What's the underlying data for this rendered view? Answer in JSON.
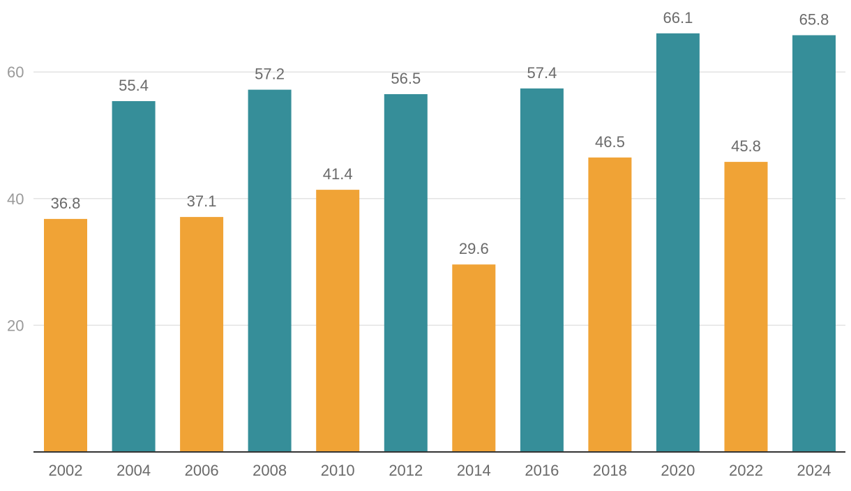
{
  "chart_data": {
    "type": "bar",
    "categories": [
      "2002",
      "2004",
      "2006",
      "2008",
      "2010",
      "2012",
      "2014",
      "2016",
      "2018",
      "2020",
      "2022",
      "2024"
    ],
    "values": [
      36.8,
      55.4,
      37.1,
      57.2,
      41.4,
      56.5,
      29.6,
      57.4,
      46.5,
      66.1,
      45.8,
      65.8
    ],
    "data_labels": [
      "36.8",
      "55.4",
      "37.1",
      "57.2",
      "41.4",
      "56.5",
      "29.6",
      "57.4",
      "46.5",
      "66.1",
      "45.8",
      "65.8"
    ],
    "bar_colors": [
      "#f0a336",
      "#368e99",
      "#f0a336",
      "#368e99",
      "#f0a336",
      "#368e99",
      "#f0a336",
      "#368e99",
      "#f0a336",
      "#368e99",
      "#f0a336",
      "#368e99"
    ],
    "y_ticks": [
      "20",
      "40",
      "60"
    ],
    "y_tick_values": [
      20,
      40,
      60
    ],
    "ylim": [
      0,
      70
    ],
    "title": "",
    "xlabel": "",
    "ylabel": "",
    "grid": true,
    "legend": "none"
  }
}
